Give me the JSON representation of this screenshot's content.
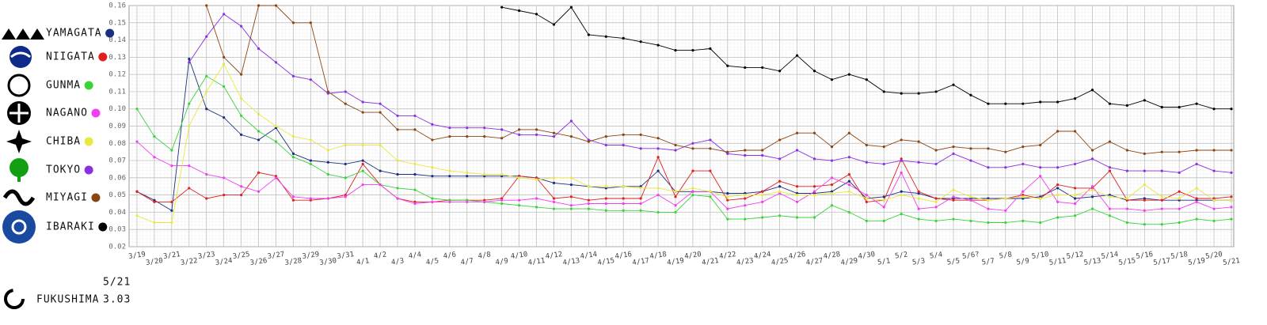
{
  "chart_data": {
    "type": "line",
    "categories": [
      "3/19",
      "3/20",
      "3/21",
      "3/22",
      "3/23",
      "3/24",
      "3/25",
      "3/26",
      "3/27",
      "3/28",
      "3/29",
      "3/30",
      "3/31",
      "4/1",
      "4/2",
      "4/3",
      "4/4",
      "4/5",
      "4/6",
      "4/7",
      "4/8",
      "4/9",
      "4/10",
      "4/11",
      "4/12",
      "4/13",
      "4/14",
      "4/15",
      "4/16",
      "4/17",
      "4/18",
      "4/19",
      "4/20",
      "4/21",
      "4/22",
      "4/23",
      "4/24",
      "4/25",
      "4/26",
      "4/27",
      "4/28",
      "4/29",
      "4/30",
      "5/1",
      "5/2",
      "5/3",
      "5/4",
      "5/5",
      "5/6?",
      "5/7",
      "5/8",
      "5/9",
      "5/10",
      "5/11",
      "5/12",
      "5/13",
      "5/14",
      "5/15",
      "5/16",
      "5/17",
      "5/18",
      "5/19",
      "5/20",
      "5/21"
    ],
    "ylim": [
      0.02,
      0.16
    ],
    "yticks": [
      0.02,
      0.03,
      0.04,
      0.05,
      0.06,
      0.07,
      0.08,
      0.09,
      {
        "value": 0.1,
        "label": "0.10"
      },
      0.11,
      0.12,
      0.13,
      0.14,
      0.15,
      0.16
    ],
    "grid": true,
    "series": [
      {
        "name": "YAMAGATA",
        "color": "#1a2f80",
        "values": [
          0.052,
          0.047,
          0.041,
          0.129,
          0.1,
          0.095,
          0.085,
          0.082,
          0.089,
          0.074,
          0.07,
          0.069,
          0.068,
          0.07,
          0.064,
          0.062,
          0.062,
          0.061,
          0.061,
          0.061,
          0.061,
          0.061,
          0.061,
          0.06,
          0.057,
          0.056,
          0.055,
          0.054,
          0.055,
          0.055,
          0.064,
          0.052,
          0.052,
          0.052,
          0.051,
          0.051,
          0.052,
          0.055,
          0.051,
          0.051,
          0.052,
          0.058,
          0.048,
          0.049,
          0.052,
          0.051,
          0.048,
          0.048,
          0.048,
          0.048,
          0.048,
          0.048,
          0.049,
          0.054,
          0.048,
          0.049,
          0.05,
          0.047,
          0.048,
          0.047,
          0.047,
          0.047,
          0.047,
          0.047
        ]
      },
      {
        "name": "NIIGATA",
        "color": "#e02020",
        "values": [
          0.052,
          0.046,
          0.046,
          0.054,
          0.048,
          0.05,
          0.05,
          0.063,
          0.061,
          0.047,
          0.047,
          0.048,
          0.05,
          0.068,
          0.056,
          0.048,
          0.046,
          0.046,
          0.047,
          0.047,
          0.047,
          0.048,
          0.061,
          0.06,
          0.048,
          0.049,
          0.047,
          0.048,
          0.048,
          0.048,
          0.072,
          0.049,
          0.064,
          0.064,
          0.047,
          0.048,
          0.052,
          0.058,
          0.055,
          0.055,
          0.056,
          0.062,
          0.046,
          0.047,
          0.071,
          0.052,
          0.048,
          0.047,
          0.047,
          0.047,
          0.048,
          0.05,
          0.048,
          0.056,
          0.054,
          0.054,
          0.064,
          0.047,
          0.047,
          0.047,
          0.052,
          0.048,
          0.048,
          0.049
        ]
      },
      {
        "name": "GUNMA",
        "color": "#3ad43a",
        "values": [
          0.1,
          0.084,
          0.076,
          0.103,
          0.119,
          0.113,
          0.096,
          0.087,
          0.081,
          0.072,
          0.068,
          0.062,
          0.06,
          0.064,
          0.056,
          0.054,
          0.053,
          0.048,
          0.047,
          0.047,
          0.046,
          0.045,
          0.044,
          0.043,
          0.042,
          0.042,
          0.042,
          0.041,
          0.041,
          0.041,
          0.04,
          0.04,
          0.05,
          0.049,
          0.036,
          0.036,
          0.037,
          0.038,
          0.037,
          0.037,
          0.044,
          0.04,
          0.035,
          0.035,
          0.039,
          0.036,
          0.035,
          0.036,
          0.035,
          0.034,
          0.034,
          0.035,
          0.034,
          0.037,
          0.038,
          0.042,
          0.038,
          0.034,
          0.033,
          0.033,
          0.034,
          0.036,
          0.035,
          0.036
        ]
      },
      {
        "name": "NAGANO",
        "color": "#f040f0",
        "values": [
          0.081,
          0.072,
          0.067,
          0.067,
          0.062,
          0.06,
          0.055,
          0.052,
          0.06,
          0.049,
          0.048,
          0.048,
          0.049,
          0.056,
          0.056,
          0.048,
          0.045,
          0.046,
          0.046,
          0.046,
          0.046,
          0.047,
          0.047,
          0.048,
          0.046,
          0.044,
          0.045,
          0.045,
          0.045,
          0.045,
          0.05,
          0.044,
          0.052,
          0.052,
          0.042,
          0.044,
          0.046,
          0.051,
          0.046,
          0.052,
          0.06,
          0.056,
          0.05,
          0.043,
          0.063,
          0.042,
          0.043,
          0.049,
          0.047,
          0.042,
          0.041,
          0.052,
          0.061,
          0.046,
          0.045,
          0.055,
          0.042,
          0.042,
          0.041,
          0.042,
          0.042,
          0.046,
          0.042,
          0.043
        ]
      },
      {
        "name": "CHIBA",
        "color": "#e8e840",
        "values": [
          0.038,
          0.034,
          0.034,
          0.09,
          0.11,
          0.126,
          0.106,
          0.097,
          0.09,
          0.084,
          0.082,
          0.076,
          0.079,
          0.079,
          0.079,
          0.07,
          0.068,
          0.066,
          0.064,
          0.063,
          0.062,
          0.062,
          0.06,
          0.059,
          0.06,
          0.06,
          0.055,
          0.055,
          0.055,
          0.054,
          0.054,
          0.052,
          0.054,
          0.052,
          0.049,
          0.05,
          0.05,
          0.052,
          0.05,
          0.05,
          0.051,
          0.052,
          0.048,
          0.047,
          0.05,
          0.048,
          0.046,
          0.053,
          0.049,
          0.047,
          0.048,
          0.049,
          0.048,
          0.05,
          0.05,
          0.053,
          0.049,
          0.048,
          0.056,
          0.049,
          0.048,
          0.054,
          0.047,
          0.047
        ]
      },
      {
        "name": "TOKYO",
        "color": "#8a30e0",
        "values": [
          null,
          null,
          null,
          0.127,
          0.142,
          0.155,
          0.148,
          0.135,
          0.127,
          0.119,
          0.117,
          0.109,
          0.11,
          0.104,
          0.103,
          0.096,
          0.096,
          0.091,
          0.089,
          0.089,
          0.089,
          0.088,
          0.085,
          0.085,
          0.084,
          0.093,
          0.082,
          0.079,
          0.079,
          0.077,
          0.077,
          0.076,
          0.08,
          0.082,
          0.074,
          0.073,
          0.073,
          0.071,
          0.076,
          0.071,
          0.07,
          0.072,
          0.069,
          0.068,
          0.07,
          0.069,
          0.068,
          0.074,
          0.07,
          0.066,
          0.066,
          0.068,
          0.066,
          0.066,
          0.068,
          0.071,
          0.066,
          0.064,
          0.064,
          0.064,
          0.063,
          0.068,
          0.064,
          0.063
        ]
      },
      {
        "name": "MIYAGI",
        "color": "#8b4513",
        "values": [
          null,
          null,
          null,
          null,
          0.16,
          0.13,
          0.12,
          0.16,
          0.16,
          0.15,
          0.15,
          0.11,
          0.103,
          0.098,
          0.098,
          0.088,
          0.088,
          0.082,
          0.084,
          0.084,
          0.084,
          0.083,
          0.088,
          0.088,
          0.086,
          0.084,
          0.081,
          0.084,
          0.085,
          0.085,
          0.083,
          0.079,
          0.077,
          0.077,
          0.075,
          0.076,
          0.076,
          0.082,
          0.086,
          0.086,
          0.078,
          0.086,
          0.079,
          0.078,
          0.082,
          0.081,
          0.076,
          0.078,
          0.077,
          0.077,
          0.075,
          0.078,
          0.079,
          0.087,
          0.087,
          0.076,
          0.081,
          0.076,
          0.074,
          0.075,
          0.075,
          0.076,
          0.076,
          0.076
        ]
      },
      {
        "name": "IBARAKI",
        "color": "#000000",
        "values": [
          null,
          null,
          null,
          null,
          null,
          null,
          null,
          null,
          null,
          null,
          null,
          null,
          null,
          null,
          null,
          null,
          null,
          null,
          null,
          null,
          null,
          0.159,
          0.157,
          0.155,
          0.149,
          0.159,
          0.143,
          0.142,
          0.141,
          0.139,
          0.137,
          0.134,
          0.134,
          0.135,
          0.125,
          0.124,
          0.124,
          0.122,
          0.131,
          0.122,
          0.117,
          0.12,
          0.117,
          0.11,
          0.109,
          0.109,
          0.11,
          0.114,
          0.108,
          0.103,
          0.103,
          0.103,
          0.104,
          0.104,
          0.106,
          0.111,
          0.103,
          0.102,
          0.105,
          0.101,
          0.101,
          0.103,
          0.1,
          0.1
        ]
      }
    ],
    "fukushima": {
      "name": "FUKUSHIMA",
      "date": "5/21",
      "value": 3.03
    }
  }
}
